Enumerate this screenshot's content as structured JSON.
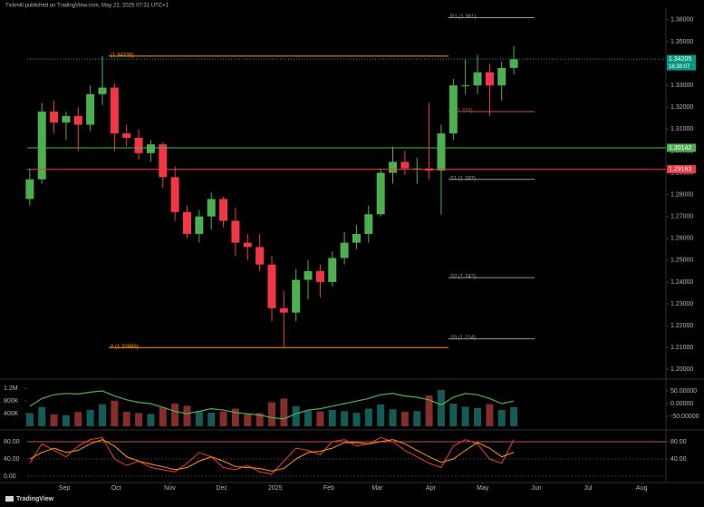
{
  "header": "Tickmill published on TradingView.com, May 22, 2025 07:31 UTC+1",
  "footer": "TradingView",
  "chart_data": [
    {
      "type": "candlestick",
      "up_color": "#4caf50",
      "down_color": "#f23645",
      "grid": false,
      "xlim": [
        -1.5,
        368
      ],
      "ylim": [
        1.1968,
        1.3641
      ],
      "yticks": [
        {
          "value": 1.36,
          "label": "1.36000"
        },
        {
          "value": 1.35,
          "label": "1.35000"
        },
        {
          "value": 1.34,
          "label": "1.34000"
        },
        {
          "value": 1.33,
          "label": "1.33000"
        },
        {
          "value": 1.32,
          "label": "1.32000"
        },
        {
          "value": 1.31,
          "label": "1.31000"
        },
        {
          "value": 1.3,
          "label": "1.30000"
        },
        {
          "value": 1.29,
          "label": "1.29000"
        },
        {
          "value": 1.28,
          "label": "1.28000"
        },
        {
          "value": 1.27,
          "label": "1.27000"
        },
        {
          "value": 1.26,
          "label": "1.26000"
        },
        {
          "value": 1.25,
          "label": "1.25000"
        },
        {
          "value": 1.24,
          "label": "1.24000"
        },
        {
          "value": 1.23,
          "label": "1.23000"
        },
        {
          "value": 1.22,
          "label": "1.22000"
        },
        {
          "value": 1.21,
          "label": "1.21000"
        },
        {
          "value": 1.2,
          "label": "1.20000"
        }
      ],
      "x": [
        0,
        7,
        14,
        21,
        28,
        35,
        42,
        49,
        56,
        63,
        70,
        77,
        84,
        91,
        98,
        105,
        112,
        119,
        126,
        133,
        140,
        147,
        154,
        161,
        168,
        175,
        182,
        189,
        196,
        203,
        210,
        217,
        224,
        231,
        238,
        245,
        252,
        259,
        266,
        273,
        280
      ],
      "open": [
        1.278,
        1.287,
        1.318,
        1.313,
        1.316,
        1.312,
        1.326,
        1.329,
        1.308,
        1.306,
        1.299,
        1.303,
        1.288,
        1.272,
        1.262,
        1.27,
        1.278,
        1.268,
        1.258,
        1.256,
        1.248,
        1.228,
        1.226,
        1.241,
        1.245,
        1.24,
        1.251,
        1.258,
        1.262,
        1.271,
        1.29,
        1.295,
        1.292,
        1.292,
        1.291,
        1.308,
        1.33,
        1.33,
        1.336,
        1.33,
        1.338
      ],
      "high": [
        1.292,
        1.322,
        1.323,
        1.318,
        1.32,
        1.33,
        1.3434,
        1.331,
        1.312,
        1.31,
        1.305,
        1.304,
        1.293,
        1.275,
        1.273,
        1.281,
        1.279,
        1.274,
        1.262,
        1.262,
        1.252,
        1.236,
        1.246,
        1.25,
        1.248,
        1.254,
        1.263,
        1.266,
        1.275,
        1.292,
        1.302,
        1.3,
        1.297,
        1.322,
        1.312,
        1.333,
        1.342,
        1.344,
        1.34,
        1.341,
        1.348
      ],
      "low": [
        1.275,
        1.285,
        1.308,
        1.305,
        1.3,
        1.309,
        1.321,
        1.3,
        1.302,
        1.296,
        1.295,
        1.283,
        1.268,
        1.26,
        1.258,
        1.264,
        1.265,
        1.252,
        1.25,
        1.245,
        1.222,
        1.2099,
        1.222,
        1.232,
        1.233,
        1.238,
        1.248,
        1.255,
        1.258,
        1.27,
        1.285,
        1.289,
        1.285,
        1.287,
        1.2708,
        1.305,
        1.326,
        1.326,
        1.316,
        1.323,
        1.335
      ],
      "close": [
        1.287,
        1.318,
        1.313,
        1.316,
        1.312,
        1.326,
        1.329,
        1.308,
        1.306,
        1.299,
        1.303,
        1.288,
        1.272,
        1.262,
        1.27,
        1.278,
        1.268,
        1.258,
        1.256,
        1.248,
        1.228,
        1.226,
        1.241,
        1.245,
        1.24,
        1.251,
        1.258,
        1.262,
        1.271,
        1.29,
        1.295,
        1.292,
        1.292,
        1.291,
        1.308,
        1.33,
        1.33,
        1.336,
        1.33,
        1.338,
        1.342
      ],
      "levels": [
        {
          "label": "R1 (1.361)",
          "value": 1.361,
          "color": "#9598a1"
        },
        {
          "label": "(1.34338)",
          "value": 1.34338,
          "color": "#ff9800"
        },
        {
          "label": "P (1.318)",
          "value": 1.318,
          "color": "#b2564a"
        },
        {
          "label": "S1 (1.287)",
          "value": 1.287,
          "color": "#9598a1"
        },
        {
          "label": "S2 (1.242)",
          "value": 1.242,
          "color": "#9598a1"
        },
        {
          "label": "S3 (1.214)",
          "value": 1.214,
          "color": "#9598a1"
        },
        {
          "label": "0 (1.20999)",
          "value": 1.20999,
          "color": "#ff9800"
        }
      ],
      "price_tags": [
        {
          "label": "1.34205",
          "value": 1.34205,
          "color": "#089981"
        },
        {
          "label": "1.30142",
          "value": 1.30142,
          "color": "#4caf50"
        },
        {
          "label": "1.29163",
          "value": 1.29163,
          "color": "#f23645"
        }
      ],
      "countdown": "16:38:07"
    },
    {
      "type": "bar",
      "xlim": [
        -1.5,
        368
      ],
      "ylim": [
        0,
        1380000
      ],
      "y2lim": [
        -89,
        82
      ],
      "yticks": [
        {
          "value": 1200000,
          "label": "1.2M"
        },
        {
          "value": 800000,
          "label": "800K"
        },
        {
          "value": 400000,
          "label": "400K"
        }
      ],
      "y2ticks": [
        {
          "value": 50,
          "label": "50.00000"
        },
        {
          "value": 0,
          "label": "0.00000"
        },
        {
          "value": -50,
          "label": "-50.00000"
        }
      ],
      "x": [
        0,
        7,
        14,
        21,
        28,
        35,
        42,
        49,
        56,
        63,
        70,
        77,
        84,
        91,
        98,
        105,
        112,
        119,
        126,
        133,
        140,
        147,
        154,
        161,
        168,
        175,
        182,
        189,
        196,
        203,
        210,
        217,
        224,
        231,
        238,
        245,
        252,
        259,
        266,
        273,
        280
      ],
      "series": [
        {
          "color": "#26a69a",
          "values": [
            420000,
            610000,
            380000,
            350000,
            450000,
            520000,
            700000,
            810000,
            460000,
            420000,
            390000,
            600000,
            720000,
            650000,
            480000,
            430000,
            470000,
            560000,
            380000,
            420000,
            760000,
            880000,
            640000,
            500000,
            470000,
            520000,
            480000,
            430000,
            560000,
            690000,
            540000,
            460000,
            480000,
            980000,
            1150000,
            720000,
            620000,
            580000,
            700000,
            520000,
            610000
          ]
        },
        {
          "axis": "y2",
          "color": "#4caf50",
          "values": [
            -10,
            20,
            35,
            40,
            38,
            45,
            50,
            30,
            15,
            5,
            0,
            -15,
            -30,
            -40,
            -30,
            -20,
            -25,
            -35,
            -40,
            -45,
            -55,
            -60,
            -40,
            -25,
            -20,
            -10,
            0,
            10,
            20,
            35,
            40,
            30,
            25,
            15,
            -5,
            25,
            40,
            35,
            20,
            0,
            10
          ]
        }
      ]
    },
    {
      "type": "line",
      "grid": true,
      "xlim": [
        -1.5,
        368
      ],
      "ylim": [
        -10.5,
        99
      ],
      "y2lim": [
        -10.5,
        99
      ],
      "yticks": [
        {
          "value": 80,
          "label": "80.00"
        },
        {
          "value": 40,
          "label": "40.00"
        },
        {
          "value": 0,
          "label": "0.00"
        }
      ],
      "y2ticks": [
        {
          "value": 80,
          "label": "80.00"
        },
        {
          "value": 40,
          "label": "40.00"
        }
      ],
      "xticks": [
        {
          "value": 20,
          "label": "Sep"
        },
        {
          "value": 50,
          "label": "Oct"
        },
        {
          "value": 81,
          "label": "Nov"
        },
        {
          "value": 111,
          "label": "Dec"
        },
        {
          "value": 142,
          "label": "2025"
        },
        {
          "value": 173,
          "label": "Feb"
        },
        {
          "value": 201,
          "label": "Mar"
        },
        {
          "value": 232,
          "label": "Apr"
        },
        {
          "value": 262,
          "label": "May"
        },
        {
          "value": 293,
          "label": "Jun"
        },
        {
          "value": 323,
          "label": "Jul"
        },
        {
          "value": 354,
          "label": "Aug"
        }
      ],
      "x": [
        0,
        7,
        14,
        21,
        28,
        35,
        42,
        49,
        56,
        63,
        70,
        77,
        84,
        91,
        98,
        105,
        112,
        119,
        126,
        133,
        140,
        147,
        154,
        161,
        168,
        175,
        182,
        189,
        196,
        203,
        210,
        217,
        224,
        231,
        238,
        245,
        252,
        259,
        266,
        273,
        280
      ],
      "series": [
        {
          "color": "#f23645",
          "values": [
            30,
            75,
            60,
            45,
            70,
            85,
            90,
            40,
            25,
            35,
            20,
            15,
            10,
            30,
            55,
            45,
            20,
            15,
            25,
            10,
            5,
            35,
            65,
            60,
            50,
            80,
            85,
            70,
            75,
            90,
            80,
            60,
            45,
            30,
            20,
            70,
            85,
            75,
            40,
            30,
            85
          ]
        },
        {
          "color": "#ff9800",
          "values": [
            40,
            55,
            65,
            55,
            60,
            75,
            85,
            70,
            45,
            35,
            28,
            22,
            15,
            20,
            35,
            45,
            35,
            22,
            20,
            18,
            12,
            18,
            40,
            55,
            58,
            65,
            78,
            78,
            75,
            80,
            85,
            75,
            60,
            45,
            32,
            40,
            60,
            78,
            65,
            45,
            55
          ]
        }
      ]
    }
  ]
}
